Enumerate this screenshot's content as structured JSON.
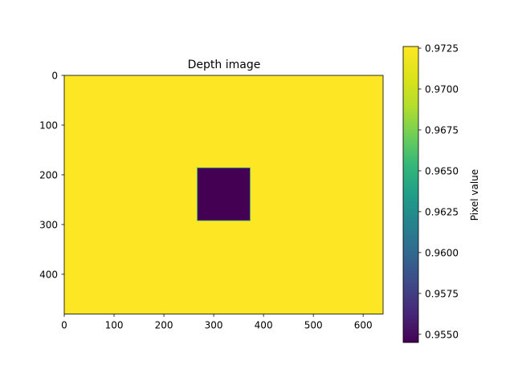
{
  "chart_data": {
    "type": "heatmap",
    "title": "Depth image",
    "xlabel": "",
    "ylabel": "",
    "image_size": {
      "width": 640,
      "height": 480
    },
    "xlim": [
      0,
      640
    ],
    "ylim": [
      480,
      0
    ],
    "x_ticks": [
      0,
      100,
      200,
      300,
      400,
      500,
      600
    ],
    "y_ticks": [
      0,
      100,
      200,
      300,
      400
    ],
    "background_value": 0.9725,
    "regions": [
      {
        "name": "square",
        "x0": 267,
        "y0": 186,
        "x1": 373,
        "y1": 292,
        "value": 0.9545
      }
    ],
    "colormap": "viridis",
    "colorbar": {
      "label": "Pixel value",
      "range": [
        0.9545,
        0.9726
      ],
      "ticks": [
        "0.9550",
        "0.9575",
        "0.9600",
        "0.9625",
        "0.9650",
        "0.9675",
        "0.9700",
        "0.9725"
      ],
      "tick_values": [
        0.955,
        0.9575,
        0.96,
        0.9625,
        0.965,
        0.9675,
        0.97,
        0.9725
      ]
    },
    "colors": {
      "high": "#fde725",
      "low": "#440154"
    }
  }
}
